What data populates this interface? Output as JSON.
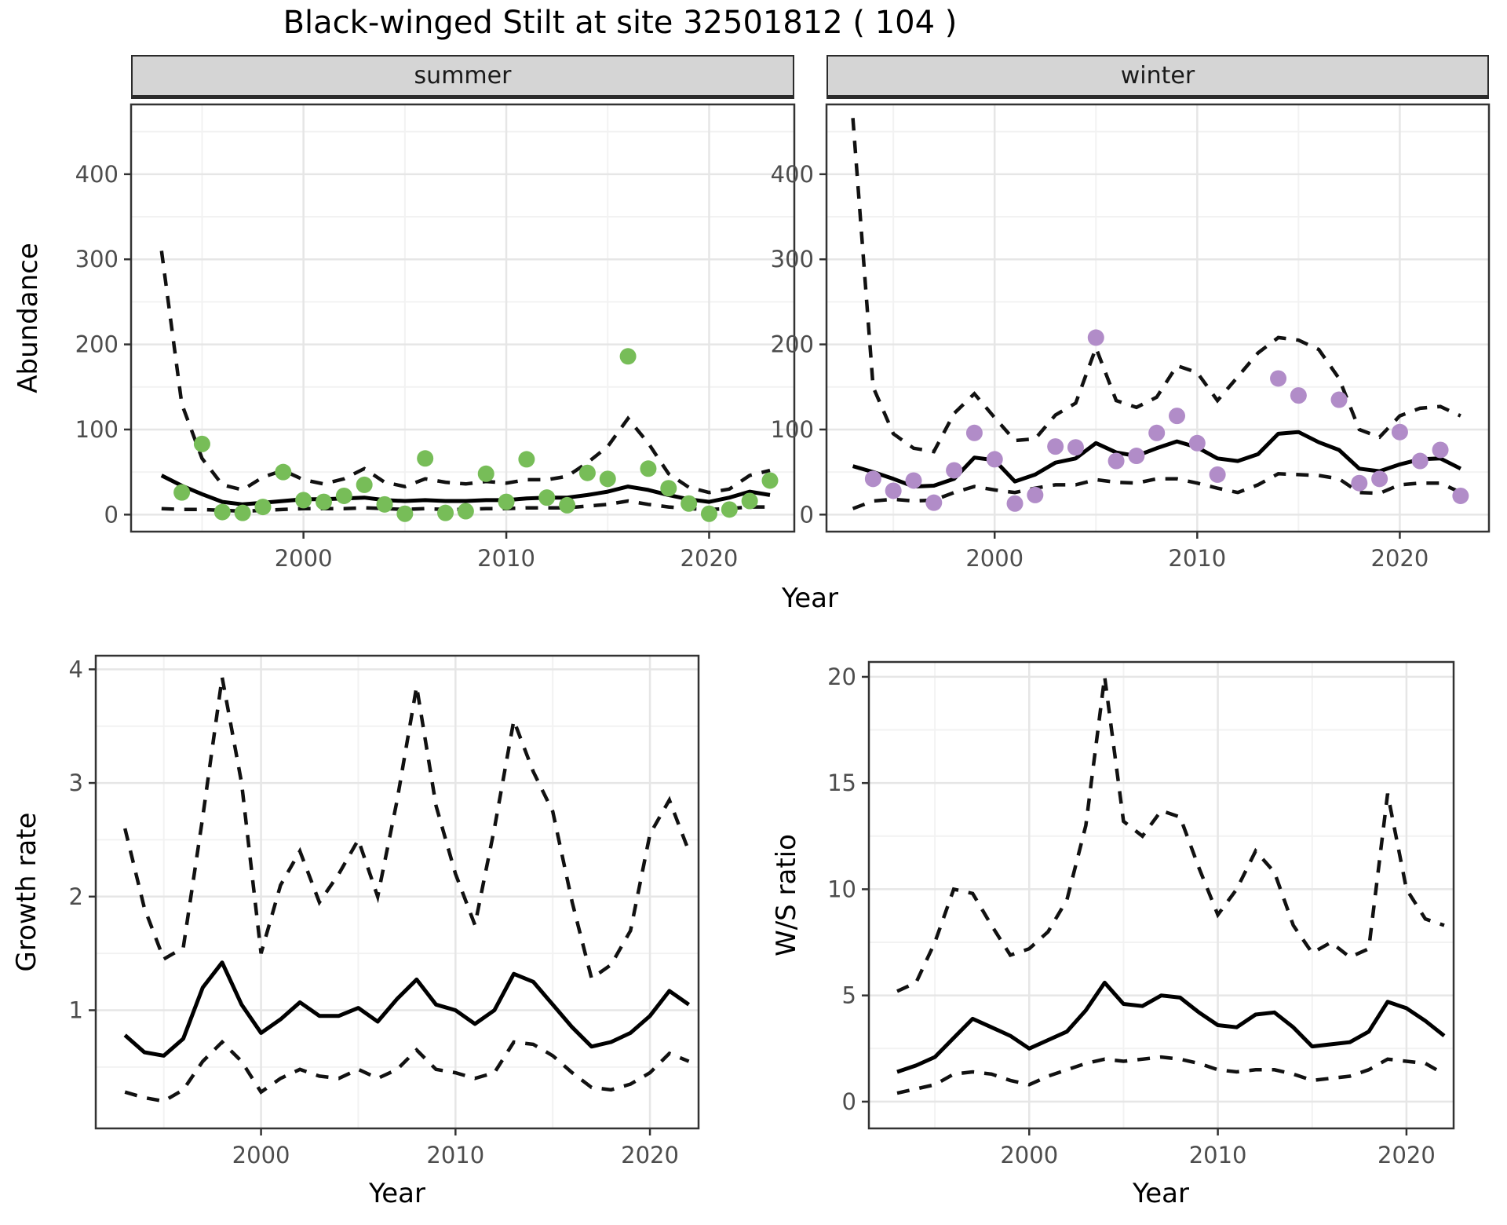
{
  "title": "Black-winged Stilt at site 32501812 ( 104 )",
  "axis_titles": {
    "abundance": "Abundance",
    "year_top": "Year",
    "growth": "Growth rate",
    "year_growth": "Year",
    "ws": "W/S ratio",
    "year_ws": "Year"
  },
  "facets": {
    "summer": "summer",
    "winter": "winter"
  },
  "colors": {
    "summer_point": "#77bd58",
    "winter_point": "#b18cc8",
    "fit_line": "#000000",
    "ci_line": "#111111",
    "strip_bg": "#d5d5d5",
    "panel_border": "#333333",
    "grid_major": "#e6e6e6",
    "grid_minor": "#f2f2f2",
    "tick_text": "#4d4d4d",
    "tick_mark": "#333333"
  },
  "chart_data": [
    {
      "id": "abundance_summer",
      "type": "scatter",
      "facet_label": "summer",
      "ylabel": "Abundance",
      "xlabel": "Year",
      "xlim": [
        1991.5,
        2024.2
      ],
      "ylim": [
        -20,
        482
      ],
      "x_ticks": [
        2000,
        2010,
        2020
      ],
      "y_ticks": [
        0,
        100,
        200,
        300,
        400
      ],
      "x_minor": [
        1995,
        2005,
        2015
      ],
      "y_minor": [
        50,
        150,
        250,
        350,
        450
      ],
      "line_years": [
        1993,
        1994,
        1995,
        1996,
        1997,
        1998,
        1999,
        2000,
        2001,
        2002,
        2003,
        2004,
        2005,
        2006,
        2007,
        2008,
        2009,
        2010,
        2011,
        2012,
        2013,
        2014,
        2015,
        2016,
        2017,
        2018,
        2019,
        2020,
        2021,
        2022,
        2023
      ],
      "fit": [
        46,
        34,
        24,
        15,
        12,
        14,
        16,
        18,
        18,
        19,
        20,
        17,
        16,
        17,
        16,
        16,
        17,
        17,
        19,
        20,
        20,
        23,
        27,
        33,
        29,
        23,
        18,
        15,
        20,
        27,
        23
      ],
      "ci_upper": [
        310,
        130,
        66,
        35,
        29,
        44,
        52,
        41,
        36,
        42,
        54,
        38,
        33,
        42,
        38,
        36,
        39,
        37,
        41,
        41,
        45,
        61,
        80,
        113,
        84,
        48,
        32,
        26,
        30,
        46,
        52
      ],
      "ci_lower": [
        7,
        6,
        6,
        5,
        4,
        5,
        6,
        7,
        7,
        7,
        8,
        7,
        6,
        7,
        6,
        6,
        7,
        7,
        8,
        8,
        8,
        10,
        12,
        16,
        12,
        9,
        7,
        6,
        7,
        9,
        9
      ],
      "point_years": [
        1994,
        1995,
        1996,
        1997,
        1998,
        1999,
        2000,
        2001,
        2002,
        2003,
        2004,
        2005,
        2006,
        2007,
        2008,
        2009,
        2010,
        2011,
        2012,
        2013,
        2014,
        2015,
        2016,
        2017,
        2018,
        2019,
        2020,
        2021,
        2022,
        2023
      ],
      "point_values": [
        26,
        83,
        3,
        2,
        9,
        50,
        17,
        15,
        22,
        35,
        12,
        1,
        66,
        2,
        4,
        48,
        15,
        65,
        20,
        11,
        49,
        42,
        186,
        54,
        31,
        13,
        1,
        6,
        16,
        40
      ],
      "point_color_key": "summer_point"
    },
    {
      "id": "abundance_winter",
      "type": "scatter",
      "facet_label": "winter",
      "ylabel": "Abundance",
      "xlabel": "Year",
      "xlim": [
        1991.7,
        2024.4
      ],
      "ylim": [
        -20,
        482
      ],
      "x_ticks": [
        2000,
        2010,
        2020
      ],
      "y_ticks": [
        0,
        100,
        200,
        300,
        400
      ],
      "x_minor": [
        1995,
        2005,
        2015
      ],
      "y_minor": [
        50,
        150,
        250,
        350,
        450
      ],
      "line_years": [
        1993,
        1994,
        1995,
        1996,
        1997,
        1998,
        1999,
        2000,
        2001,
        2002,
        2003,
        2004,
        2005,
        2006,
        2007,
        2008,
        2009,
        2010,
        2011,
        2012,
        2013,
        2014,
        2015,
        2016,
        2017,
        2018,
        2019,
        2020,
        2021,
        2022,
        2023
      ],
      "fit": [
        57,
        50,
        42,
        33,
        34,
        42,
        67,
        64,
        39,
        47,
        61,
        66,
        84,
        73,
        69,
        78,
        86,
        79,
        66,
        63,
        71,
        95,
        97,
        85,
        76,
        54,
        51,
        59,
        65,
        66,
        54
      ],
      "ci_upper": [
        466,
        150,
        95,
        78,
        74,
        119,
        142,
        114,
        87,
        89,
        117,
        131,
        196,
        134,
        126,
        138,
        175,
        167,
        134,
        162,
        190,
        208,
        205,
        194,
        160,
        100,
        91,
        116,
        125,
        127,
        116
      ],
      "ci_lower": [
        7,
        16,
        18,
        16,
        17,
        26,
        33,
        29,
        26,
        31,
        35,
        35,
        41,
        38,
        37,
        42,
        42,
        37,
        31,
        26,
        35,
        48,
        47,
        46,
        42,
        26,
        25,
        35,
        37,
        37,
        26
      ],
      "point_years": [
        1994,
        1995,
        1996,
        1997,
        1998,
        1999,
        2000,
        2001,
        2002,
        2003,
        2004,
        2005,
        2006,
        2007,
        2008,
        2009,
        2010,
        2011,
        2012,
        2013,
        2014,
        2015,
        2016,
        2017,
        2018,
        2019,
        2020,
        2021,
        2022,
        2023
      ],
      "point_values": [
        42,
        28,
        40,
        14,
        52,
        96,
        65,
        13,
        23,
        80,
        79,
        208,
        63,
        69,
        96,
        116,
        84,
        47,
        null,
        null,
        160,
        140,
        null,
        135,
        37,
        42,
        97,
        63,
        76,
        22
      ],
      "point_color_key": "winter_point"
    },
    {
      "id": "growth_rate",
      "type": "line",
      "facet_label": "",
      "ylabel": "Growth rate",
      "xlabel": "Year",
      "xlim": [
        1991.5,
        2022.5
      ],
      "ylim": [
        -0.04,
        4.12
      ],
      "x_ticks": [
        2000,
        2010,
        2020
      ],
      "y_ticks": [
        1,
        2,
        3,
        4
      ],
      "x_minor": [
        1995,
        2005,
        2015
      ],
      "y_minor": [
        0.5,
        1.5,
        2.5,
        3.5
      ],
      "line_years": [
        1993,
        1994,
        1995,
        1996,
        1997,
        1998,
        1999,
        2000,
        2001,
        2002,
        2003,
        2004,
        2005,
        2006,
        2007,
        2008,
        2009,
        2010,
        2011,
        2012,
        2013,
        2014,
        2015,
        2016,
        2017,
        2018,
        2019,
        2020,
        2021,
        2022
      ],
      "fit": [
        0.78,
        0.63,
        0.6,
        0.75,
        1.2,
        1.42,
        1.05,
        0.8,
        0.92,
        1.07,
        0.95,
        0.95,
        1.02,
        0.9,
        1.1,
        1.27,
        1.05,
        1.0,
        0.88,
        1.0,
        1.32,
        1.25,
        1.05,
        0.85,
        0.68,
        0.72,
        0.8,
        0.95,
        1.17,
        1.05
      ],
      "ci_upper": [
        2.6,
        1.9,
        1.45,
        1.55,
        2.7,
        3.93,
        3.0,
        1.5,
        2.1,
        2.4,
        1.95,
        2.2,
        2.5,
        2.0,
        2.85,
        3.85,
        2.8,
        2.2,
        1.75,
        2.6,
        3.55,
        3.1,
        2.75,
        1.95,
        1.28,
        1.4,
        1.7,
        2.55,
        2.85,
        2.4
      ],
      "ci_lower": [
        0.28,
        0.23,
        0.2,
        0.3,
        0.55,
        0.72,
        0.55,
        0.28,
        0.4,
        0.48,
        0.42,
        0.4,
        0.48,
        0.4,
        0.48,
        0.65,
        0.48,
        0.45,
        0.4,
        0.45,
        0.72,
        0.7,
        0.6,
        0.45,
        0.32,
        0.3,
        0.35,
        0.45,
        0.62,
        0.55
      ],
      "point_years": [],
      "point_values": [],
      "point_color_key": "fit_line"
    },
    {
      "id": "ws_ratio",
      "type": "line",
      "facet_label": "",
      "ylabel": "W/S ratio",
      "xlabel": "Year",
      "xlim": [
        1991.5,
        2022.5
      ],
      "ylim": [
        -1.26,
        20.7
      ],
      "x_ticks": [
        2000,
        2010,
        2020
      ],
      "y_ticks": [
        0,
        5,
        10,
        15,
        20
      ],
      "x_minor": [
        1995,
        2005,
        2015
      ],
      "y_minor": [
        2.5,
        7.5,
        12.5,
        17.5
      ],
      "line_years": [
        1993,
        1994,
        1995,
        1996,
        1997,
        1998,
        1999,
        2000,
        2001,
        2002,
        2003,
        2004,
        2005,
        2006,
        2007,
        2008,
        2009,
        2010,
        2011,
        2012,
        2013,
        2014,
        2015,
        2016,
        2017,
        2018,
        2019,
        2020,
        2021,
        2022
      ],
      "fit": [
        1.4,
        1.7,
        2.1,
        3.0,
        3.9,
        3.5,
        3.1,
        2.5,
        2.9,
        3.3,
        4.3,
        5.6,
        4.6,
        4.5,
        5.0,
        4.9,
        4.2,
        3.6,
        3.5,
        4.1,
        4.2,
        3.5,
        2.6,
        2.7,
        2.8,
        3.3,
        4.7,
        4.4,
        3.8,
        3.1
      ],
      "ci_upper": [
        5.2,
        5.6,
        7.5,
        10.0,
        9.8,
        8.3,
        6.9,
        7.2,
        8.0,
        9.5,
        13.0,
        20.0,
        13.2,
        12.5,
        13.7,
        13.4,
        11.0,
        8.8,
        10.0,
        11.8,
        10.8,
        8.3,
        7.0,
        7.5,
        6.8,
        7.2,
        14.5,
        10.0,
        8.6,
        8.3
      ],
      "ci_lower": [
        0.4,
        0.6,
        0.8,
        1.3,
        1.4,
        1.3,
        1.0,
        0.8,
        1.2,
        1.5,
        1.8,
        2.0,
        1.9,
        2.0,
        2.1,
        2.0,
        1.8,
        1.5,
        1.4,
        1.5,
        1.5,
        1.3,
        1.0,
        1.1,
        1.2,
        1.5,
        2.0,
        1.9,
        1.8,
        1.3
      ],
      "point_years": [],
      "point_values": [],
      "point_color_key": "fit_line"
    }
  ]
}
